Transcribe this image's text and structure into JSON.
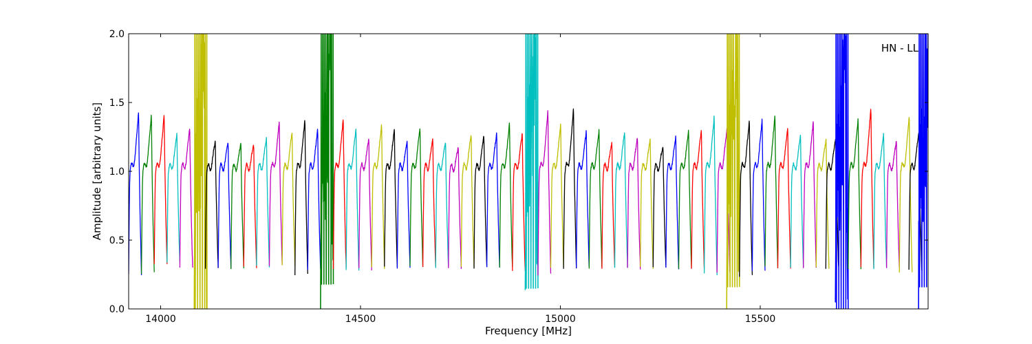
{
  "chart_data": {
    "type": "line",
    "title": "",
    "xlabel": "Frequency [MHz]",
    "ylabel": "Amplitude [arbitrary units]",
    "xlim": [
      13920,
      15920
    ],
    "ylim": [
      0.0,
      2.0
    ],
    "x_ticks": [
      14000,
      14500,
      15000,
      15500
    ],
    "y_ticks": [
      0.0,
      0.5,
      1.0,
      1.5,
      2.0
    ],
    "y_tick_labels": [
      "0.0",
      "0.5",
      "1.0",
      "1.5",
      "2.0"
    ],
    "grid": false,
    "annotation": "HN - LL",
    "annotation_position": "top-right",
    "channel_width_mhz": 32,
    "series_colors": [
      "#0000ff",
      "#008000",
      "#ff0000",
      "#00bfbf",
      "#bf00bf",
      "#bfbf00",
      "#000000"
    ],
    "channels": [
      {
        "center": 13936,
        "peak": 1.44,
        "floor": 0.25,
        "color": "#0000ff"
      },
      {
        "center": 13968,
        "peak": 1.42,
        "floor": 0.26,
        "color": "#008000"
      },
      {
        "center": 14000,
        "peak": 1.43,
        "floor": 0.33,
        "color": "#ff0000"
      },
      {
        "center": 14032,
        "peak": 1.28,
        "floor": 0.33,
        "color": "#00bfbf"
      },
      {
        "center": 14064,
        "peak": 1.33,
        "floor": 0.3,
        "color": "#bf00bf"
      },
      {
        "center": 14100,
        "peak": 2.0,
        "floor": 0.0,
        "color": "#bfbf00",
        "noisy": true
      },
      {
        "center": 14128,
        "peak": 1.23,
        "floor": 0.3,
        "color": "#000000"
      },
      {
        "center": 14160,
        "peak": 1.22,
        "floor": 0.3,
        "color": "#0000ff"
      },
      {
        "center": 14192,
        "peak": 1.21,
        "floor": 0.3,
        "color": "#008000"
      },
      {
        "center": 14224,
        "peak": 1.2,
        "floor": 0.3,
        "color": "#ff0000"
      },
      {
        "center": 14256,
        "peak": 1.25,
        "floor": 0.31,
        "color": "#00bfbf"
      },
      {
        "center": 14288,
        "peak": 1.38,
        "floor": 0.32,
        "color": "#bf00bf"
      },
      {
        "center": 14320,
        "peak": 1.3,
        "floor": 0.31,
        "color": "#bfbf00"
      },
      {
        "center": 14352,
        "peak": 1.39,
        "floor": 0.25,
        "color": "#000000"
      },
      {
        "center": 14384,
        "peak": 1.31,
        "floor": 0.28,
        "color": "#0000ff"
      },
      {
        "center": 14416,
        "peak": 2.0,
        "floor": 0.18,
        "color": "#008000",
        "noisy": true
      },
      {
        "center": 14448,
        "peak": 1.4,
        "floor": 0.3,
        "color": "#ff0000"
      },
      {
        "center": 14480,
        "peak": 1.32,
        "floor": 0.28,
        "color": "#00bfbf"
      },
      {
        "center": 14512,
        "peak": 1.25,
        "floor": 0.29,
        "color": "#bf00bf"
      },
      {
        "center": 14544,
        "peak": 1.35,
        "floor": 0.3,
        "color": "#bfbf00"
      },
      {
        "center": 14576,
        "peak": 1.32,
        "floor": 0.3,
        "color": "#000000"
      },
      {
        "center": 14608,
        "peak": 1.23,
        "floor": 0.3,
        "color": "#0000ff"
      },
      {
        "center": 14640,
        "peak": 1.33,
        "floor": 0.3,
        "color": "#008000"
      },
      {
        "center": 14672,
        "peak": 1.24,
        "floor": 0.3,
        "color": "#ff0000"
      },
      {
        "center": 14704,
        "peak": 1.22,
        "floor": 0.3,
        "color": "#00bfbf"
      },
      {
        "center": 14736,
        "peak": 1.18,
        "floor": 0.3,
        "color": "#bf00bf"
      },
      {
        "center": 14768,
        "peak": 1.28,
        "floor": 0.3,
        "color": "#bfbf00"
      },
      {
        "center": 14800,
        "peak": 1.27,
        "floor": 0.3,
        "color": "#000000"
      },
      {
        "center": 14832,
        "peak": 1.29,
        "floor": 0.3,
        "color": "#0000ff"
      },
      {
        "center": 14864,
        "peak": 1.36,
        "floor": 0.3,
        "color": "#008000"
      },
      {
        "center": 14896,
        "peak": 1.29,
        "floor": 0.27,
        "color": "#ff0000"
      },
      {
        "center": 14928,
        "peak": 2.0,
        "floor": 0.15,
        "color": "#00bfbf",
        "noisy": true
      },
      {
        "center": 14960,
        "peak": 1.46,
        "floor": 0.25,
        "color": "#bf00bf"
      },
      {
        "center": 14992,
        "peak": 1.35,
        "floor": 0.3,
        "color": "#bfbf00"
      },
      {
        "center": 15024,
        "peak": 1.47,
        "floor": 0.3,
        "color": "#000000"
      },
      {
        "center": 15056,
        "peak": 1.3,
        "floor": 0.3,
        "color": "#0000ff"
      },
      {
        "center": 15088,
        "peak": 1.31,
        "floor": 0.29,
        "color": "#008000"
      },
      {
        "center": 15120,
        "peak": 1.21,
        "floor": 0.3,
        "color": "#ff0000"
      },
      {
        "center": 15152,
        "peak": 1.3,
        "floor": 0.3,
        "color": "#00bfbf"
      },
      {
        "center": 15184,
        "peak": 1.25,
        "floor": 0.29,
        "color": "#bf00bf"
      },
      {
        "center": 15216,
        "peak": 1.24,
        "floor": 0.3,
        "color": "#bfbf00"
      },
      {
        "center": 15248,
        "peak": 1.19,
        "floor": 0.3,
        "color": "#000000"
      },
      {
        "center": 15280,
        "peak": 1.26,
        "floor": 0.29,
        "color": "#0000ff"
      },
      {
        "center": 15312,
        "peak": 1.31,
        "floor": 0.29,
        "color": "#008000"
      },
      {
        "center": 15344,
        "peak": 1.31,
        "floor": 0.29,
        "color": "#ff0000"
      },
      {
        "center": 15376,
        "peak": 1.41,
        "floor": 0.25,
        "color": "#00bfbf"
      },
      {
        "center": 15408,
        "peak": 1.32,
        "floor": 0.27,
        "color": "#bf00bf"
      },
      {
        "center": 15432,
        "peak": 2.0,
        "floor": 0.16,
        "color": "#bfbf00",
        "noisy": true
      },
      {
        "center": 15464,
        "peak": 1.38,
        "floor": 0.24,
        "color": "#000000"
      },
      {
        "center": 15496,
        "peak": 1.39,
        "floor": 0.28,
        "color": "#0000ff"
      },
      {
        "center": 15528,
        "peak": 1.42,
        "floor": 0.3,
        "color": "#008000"
      },
      {
        "center": 15560,
        "peak": 1.33,
        "floor": 0.3,
        "color": "#ff0000"
      },
      {
        "center": 15592,
        "peak": 1.27,
        "floor": 0.3,
        "color": "#00bfbf"
      },
      {
        "center": 15624,
        "peak": 1.38,
        "floor": 0.29,
        "color": "#bf00bf"
      },
      {
        "center": 15656,
        "peak": 1.24,
        "floor": 0.3,
        "color": "#bfbf00"
      },
      {
        "center": 15680,
        "peak": 1.25,
        "floor": 0.3,
        "color": "#000000"
      },
      {
        "center": 15704,
        "peak": 2.0,
        "floor": 0.0,
        "color": "#0000ff",
        "noisy": true
      },
      {
        "center": 15736,
        "peak": 1.39,
        "floor": 0.29,
        "color": "#008000"
      },
      {
        "center": 15768,
        "peak": 1.48,
        "floor": 0.3,
        "color": "#ff0000"
      },
      {
        "center": 15800,
        "peak": 1.28,
        "floor": 0.29,
        "color": "#00bfbf"
      },
      {
        "center": 15832,
        "peak": 1.23,
        "floor": 0.3,
        "color": "#bf00bf"
      },
      {
        "center": 15864,
        "peak": 1.42,
        "floor": 0.26,
        "color": "#bfbf00"
      },
      {
        "center": 15888,
        "peak": 1.3,
        "floor": 0.28,
        "color": "#000000"
      },
      {
        "center": 15912,
        "peak": 2.0,
        "floor": 0.16,
        "color": "#0000ff",
        "noisy": true
      }
    ]
  }
}
